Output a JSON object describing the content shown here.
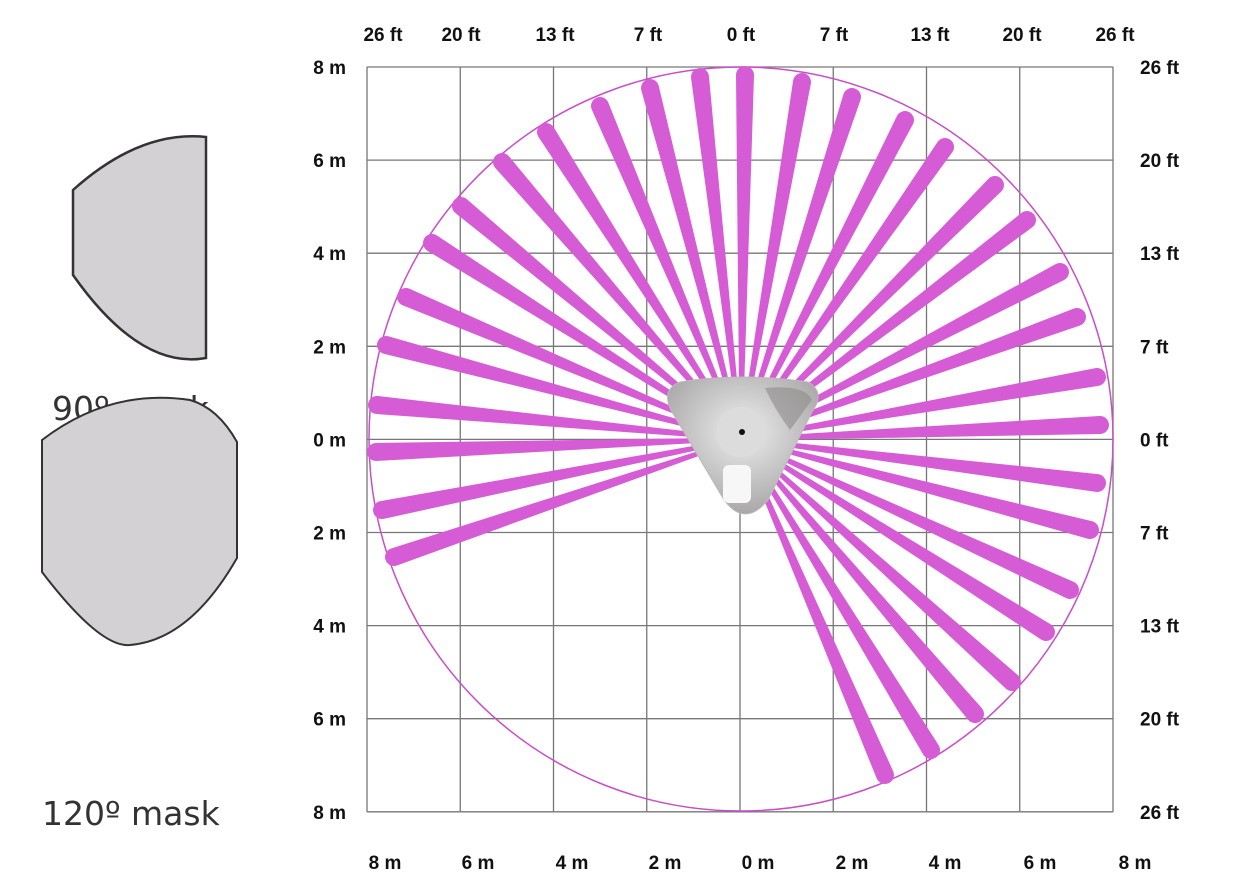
{
  "masks": [
    {
      "label": "90º mask"
    },
    {
      "label": "120º mask"
    }
  ],
  "axes": {
    "top_ft": [
      "26 ft",
      "20 ft",
      "13 ft",
      "7 ft",
      "0 ft",
      "7 ft",
      "13 ft",
      "20 ft",
      "26 ft"
    ],
    "bottom_m": [
      "8 m",
      "6 m",
      "4 m",
      "2 m",
      "0 m",
      "2 m",
      "4 m",
      "6 m",
      "8 m"
    ],
    "left_m": [
      "8 m",
      "6 m",
      "4 m",
      "2 m",
      "0 m",
      "2 m",
      "4 m",
      "6 m",
      "8 m"
    ],
    "right_ft": [
      "26 ft",
      "20 ft",
      "13 ft",
      "7 ft",
      "0 ft",
      "7 ft",
      "13 ft",
      "20 ft",
      "26 ft"
    ]
  },
  "colors": {
    "beam": "#d65cd6",
    "circle": "#c84fc8",
    "grid": "#777777",
    "mask_fill": "#d3d1d4"
  }
}
